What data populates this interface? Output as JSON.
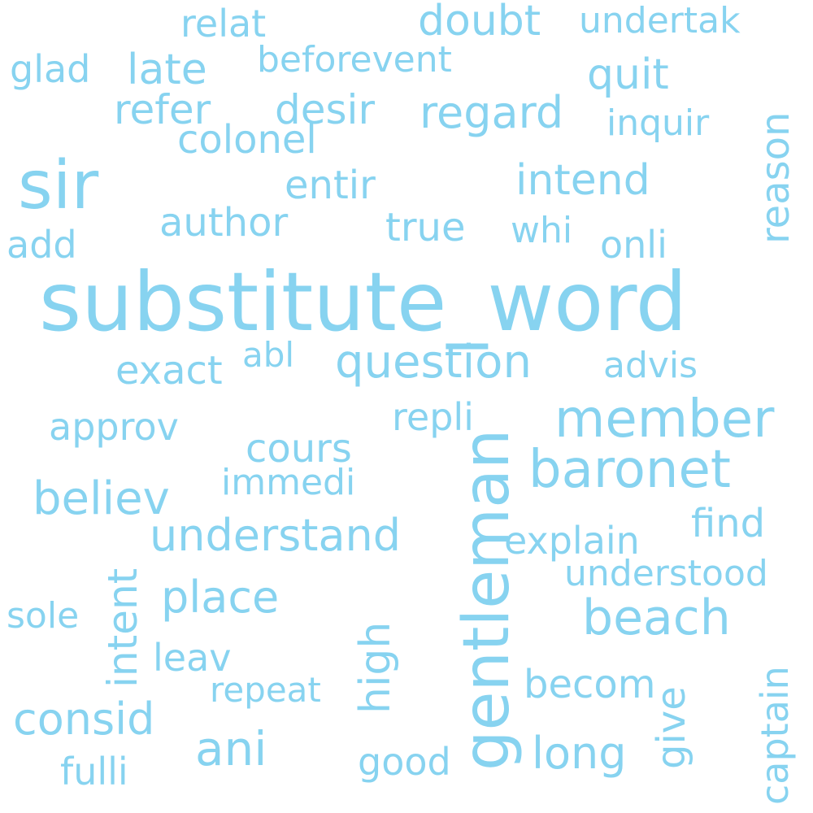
{
  "color": "#87d3f0",
  "words": {
    "substitute_word": "substitute_word",
    "sir": "sir",
    "gentleman": "gentleman",
    "member": "member",
    "baronet": "baronet",
    "question": "question",
    "beach": "beach",
    "understand": "understand",
    "consid": "consid",
    "ani": "ani",
    "intend": "intend",
    "regard": "regard",
    "refer": "refer",
    "desir": "desir",
    "believ": "believ",
    "place": "place",
    "long": "long",
    "doubt": "doubt",
    "author": "author",
    "quit": "quit",
    "reason": "reason",
    "colonel": "colonel",
    "entir": "entir",
    "true": "true",
    "onli": "onli",
    "late": "late",
    "relat": "relat",
    "beforevent": "beforevent",
    "undertak": "undertak",
    "glad": "glad",
    "inquir": "inquir",
    "add": "add",
    "whi": "whi",
    "exact": "exact",
    "abl": "abl",
    "advis": "advis",
    "approv": "approv",
    "repli": "repli",
    "cours": "cours",
    "immedi": "immedi",
    "find": "find",
    "explain": "explain",
    "understood": "understood",
    "intent": "intent",
    "high": "high",
    "sole": "sole",
    "leav": "leav",
    "repeat": "repeat",
    "becom": "becom",
    "give": "give",
    "captain": "captain",
    "good": "good",
    "fulli": "fulli"
  }
}
